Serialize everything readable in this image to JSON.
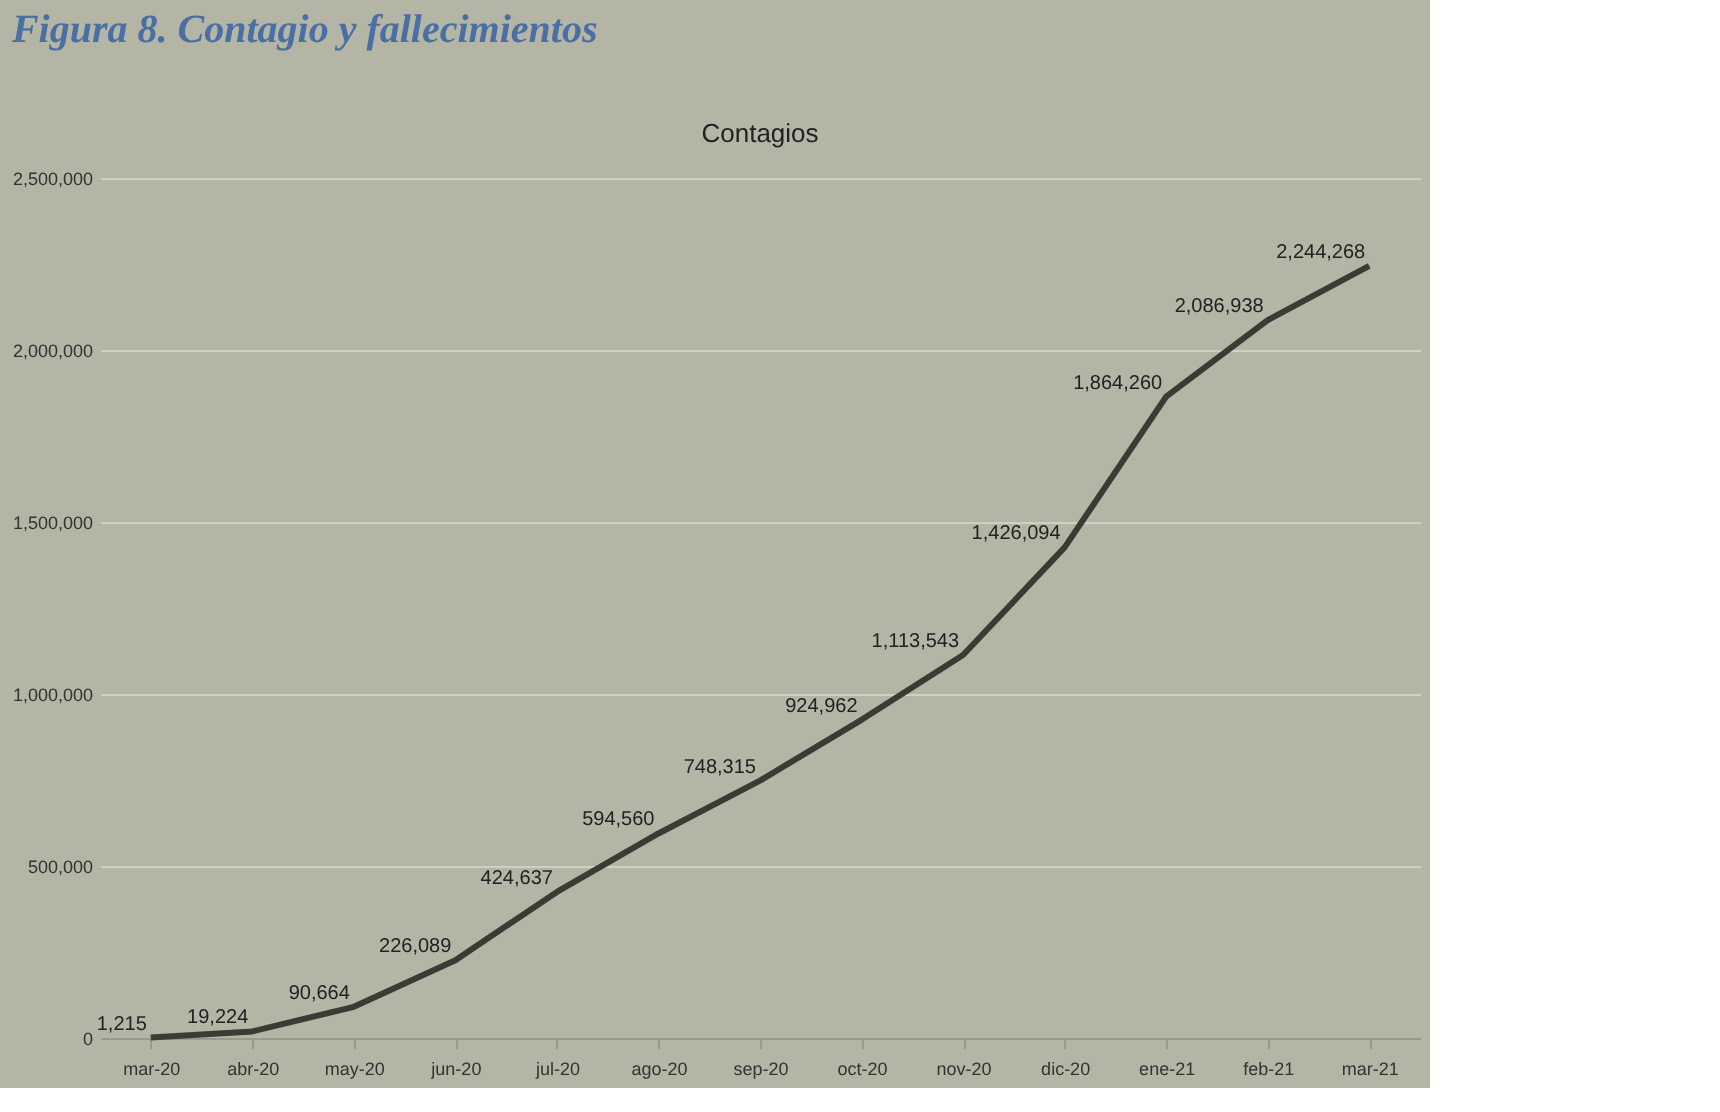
{
  "chart_data": {
    "type": "line",
    "title": "Figura 8. Contagio y fallecimientos",
    "subtitle": "Contagios",
    "categories": [
      "mar-20",
      "abr-20",
      "may-20",
      "jun-20",
      "jul-20",
      "ago-20",
      "sep-20",
      "oct-20",
      "nov-20",
      "dic-20",
      "ene-21",
      "feb-21",
      "mar-21"
    ],
    "series": [
      {
        "color": "#3b3b36",
        "values": [
          1215,
          19224,
          90664,
          226089,
          424637,
          594560,
          748315,
          924962,
          1113543,
          1426094,
          1864260,
          2086938,
          2244268
        ],
        "value_labels": [
          "1,215",
          "19,224",
          "90,664",
          "226,089",
          "424,637",
          "594,560",
          "748,315",
          "924,962",
          "1,113,543",
          "1,426,094",
          "1,864,260",
          "2,086,938",
          "2,244,268"
        ]
      }
    ],
    "ylim": [
      0,
      2500000
    ],
    "yticks": [
      0,
      {
        "value": 500000,
        "label": "500,000"
      },
      {
        "value": 1000000,
        "label": "1,000,000"
      },
      {
        "value": 1500000,
        "label": "1,500,000"
      },
      {
        "value": 2000000,
        "label": "2,000,000"
      },
      {
        "value": 2500000,
        "label": "2,500,000"
      }
    ],
    "grid": "y",
    "marker": "none",
    "line_style": "solid"
  }
}
